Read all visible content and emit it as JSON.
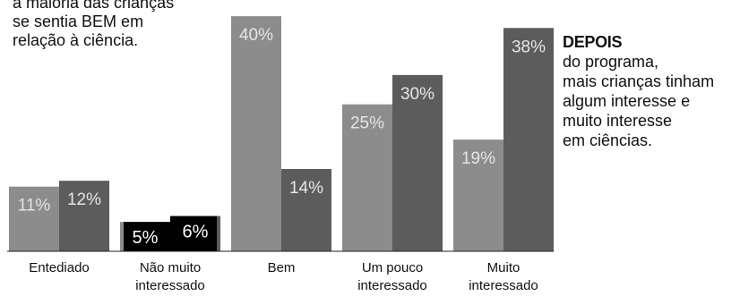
{
  "chart_data": {
    "type": "bar",
    "title": "",
    "xlabel": "",
    "ylabel": "",
    "ylim": [
      0,
      42
    ],
    "grid": false,
    "categories": [
      [
        "Entediado"
      ],
      [
        "Não muito",
        "interessado"
      ],
      [
        "Bem"
      ],
      [
        "Um pouco",
        "interessado"
      ],
      [
        "Muito",
        "interessado"
      ]
    ],
    "series": [
      {
        "values": [
          11,
          5,
          40,
          25,
          19
        ],
        "labels": [
          "11%",
          "5%",
          "40%",
          "25%",
          "19%"
        ]
      },
      {
        "values": [
          12,
          6,
          14,
          30,
          38
        ],
        "labels": [
          "12%",
          "6%",
          "14%",
          "30%",
          "38%"
        ]
      }
    ],
    "colors": {
      "series_1": "#8c8c8c",
      "series_2": "#5c5c5c",
      "small_bar": "#000000",
      "label_light": "#e6e6e6",
      "label_dark": "#ffffff",
      "baseline": "#222222"
    }
  },
  "annotations": {
    "left_lines": [
      "a maioria das crianças",
      "se sentia BEM em",
      "relação à ciência."
    ],
    "right_title": "DEPOIS",
    "right_lines": [
      "do programa,",
      "mais crianças tinham",
      "algum interesse e",
      "muito interesse",
      "em ciências."
    ]
  }
}
